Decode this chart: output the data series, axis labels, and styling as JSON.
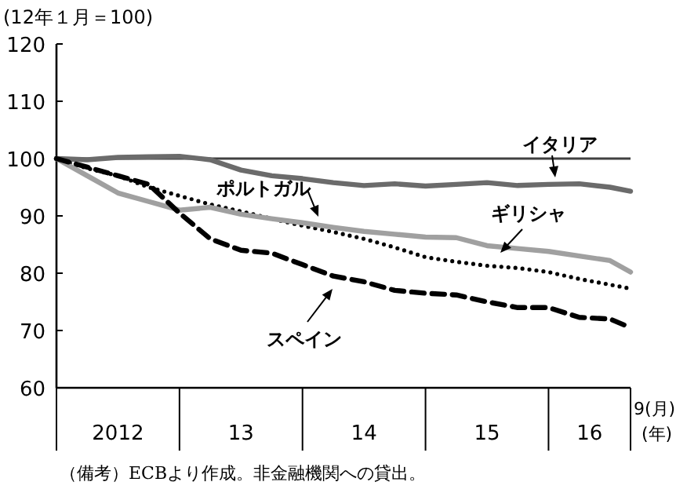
{
  "chart_data": {
    "type": "line",
    "ylabel": "(12年１月＝100)",
    "xlabel": "(年)",
    "x": [
      "2012-01",
      "2012-04",
      "2012-07",
      "2012-10",
      "2013-01",
      "2013-04",
      "2013-07",
      "2013-10",
      "2014-01",
      "2014-04",
      "2014-07",
      "2014-10",
      "2015-01",
      "2015-04",
      "2015-07",
      "2015-10",
      "2016-01",
      "2016-04",
      "2016-07",
      "2016-09"
    ],
    "series": [
      {
        "name": "イタリア",
        "color": "#6b6b6b",
        "line_style": "solid",
        "values": [
          100,
          99.8,
          100.2,
          100.3,
          100.4,
          99.8,
          98,
          97,
          96.5,
          95.8,
          95.3,
          95.6,
          95.2,
          95.5,
          95.8,
          95.3,
          95.5,
          95.6,
          95,
          94.3
        ]
      },
      {
        "name": "ポルトガル",
        "color": "#000000",
        "line_style": "dotted",
        "values": [
          100,
          98.3,
          97,
          95,
          93.5,
          92,
          90.8,
          89.5,
          88.3,
          87.2,
          86,
          84.5,
          82.8,
          82,
          81.3,
          80.9,
          80.2,
          79,
          78,
          77.3
        ]
      },
      {
        "name": "ギリシャ",
        "color": "#a0a0a0",
        "line_style": "solid",
        "values": [
          100,
          97,
          94,
          92.5,
          91,
          91.5,
          90.3,
          89.5,
          88.8,
          88,
          87.3,
          86.8,
          86.3,
          86.2,
          84.8,
          84.3,
          83.8,
          83,
          82.2,
          80.2
        ]
      },
      {
        "name": "スペイン",
        "color": "#000000",
        "line_style": "dashed",
        "values": [
          100,
          98.5,
          97,
          95.5,
          90.5,
          86,
          84,
          83.5,
          81.5,
          79.5,
          78.5,
          77,
          76.5,
          76.2,
          75,
          74,
          74,
          72.3,
          72,
          70.5
        ]
      }
    ],
    "xlim": [
      "2012-01",
      "2016-09"
    ],
    "xticks": [
      {
        "value": "2012-07",
        "label": "2012"
      },
      {
        "value": "2013-07",
        "label": "13"
      },
      {
        "value": "2014-07",
        "label": "14"
      },
      {
        "value": "2015-07",
        "label": "15"
      },
      {
        "value": "2016-05",
        "label": "16"
      }
    ],
    "ylim": [
      60,
      120
    ],
    "yticks": [
      60,
      70,
      80,
      90,
      100,
      110,
      120
    ],
    "ref_lines": [
      {
        "axis": "y",
        "value": 100,
        "color": "#404040"
      }
    ],
    "grid": false,
    "annotations": [
      "9(月)",
      "（備考）ECBより作成。非金融機関への貸出。"
    ]
  }
}
